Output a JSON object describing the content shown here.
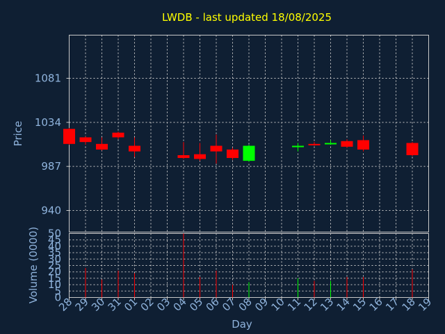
{
  "title": "LWDB - last updated 18/08/2025",
  "colors": {
    "background": "#0f1f33",
    "frame": "#c8c8c8",
    "grid": "#c8c8c8",
    "title": "#ffff00",
    "axis_text": "#8fb3dc",
    "up": "#00ff00",
    "down": "#ff0000"
  },
  "chart_data": [
    {
      "type": "candlestick",
      "ylabel": "Price",
      "ylim": [
        917,
        1127
      ],
      "yticks": [
        940,
        987,
        1034,
        1081
      ],
      "grid": true,
      "days": [
        "28",
        "29",
        "30",
        "31",
        "01",
        "02",
        "03",
        "04",
        "05",
        "06",
        "07",
        "08",
        "09",
        "10",
        "11",
        "12",
        "13",
        "14",
        "15",
        "16",
        "17",
        "18",
        "19"
      ],
      "candles": [
        {
          "day": "28",
          "open": 1027,
          "close": 1011,
          "high": 1028,
          "low": 1010
        },
        {
          "day": "29",
          "open": 1018,
          "close": 1013,
          "high": 1019,
          "low": 1010
        },
        {
          "day": "30",
          "open": 1011,
          "close": 1005,
          "high": 1018,
          "low": 1004
        },
        {
          "day": "31",
          "open": 1023,
          "close": 1018,
          "high": 1024,
          "low": 1016
        },
        {
          "day": "01",
          "open": 1009,
          "close": 1003,
          "high": 1018,
          "low": 997
        },
        {
          "day": "04",
          "open": 999,
          "close": 996,
          "high": 1013,
          "low": 995
        },
        {
          "day": "05",
          "open": 1000,
          "close": 995,
          "high": 1012,
          "low": 993
        },
        {
          "day": "06",
          "open": 1009,
          "close": 1003,
          "high": 1021,
          "low": 990
        },
        {
          "day": "07",
          "open": 1005,
          "close": 996,
          "high": 1007,
          "low": 994
        },
        {
          "day": "08",
          "open": 993,
          "close": 1009,
          "high": 1010,
          "low": 992
        },
        {
          "day": "11",
          "open": 1008,
          "close": 1009,
          "high": 1012,
          "low": 1003
        },
        {
          "day": "12",
          "open": 1011,
          "close": 1010,
          "high": 1013,
          "low": 1009
        },
        {
          "day": "13",
          "open": 1011,
          "close": 1012,
          "high": 1015,
          "low": 1010
        },
        {
          "day": "14",
          "open": 1014,
          "close": 1008,
          "high": 1016,
          "low": 1007
        },
        {
          "day": "15",
          "open": 1015,
          "close": 1005,
          "high": 1020,
          "low": 1003
        },
        {
          "day": "18",
          "open": 1012,
          "close": 999,
          "high": 1013,
          "low": 998
        }
      ]
    },
    {
      "type": "bar",
      "ylabel": "Volume (0000)",
      "xlabel": "Day",
      "ylim": [
        0,
        50
      ],
      "yticks": [
        0,
        5,
        10,
        15,
        20,
        25,
        30,
        35,
        40,
        45,
        50
      ],
      "grid": true,
      "bars": [
        {
          "day": "29",
          "value": 23,
          "color": "down"
        },
        {
          "day": "30",
          "value": 14,
          "color": "down"
        },
        {
          "day": "31",
          "value": 21,
          "color": "down"
        },
        {
          "day": "01",
          "value": 19,
          "color": "down"
        },
        {
          "day": "04",
          "value": 50,
          "color": "down"
        },
        {
          "day": "05",
          "value": 16,
          "color": "down"
        },
        {
          "day": "06",
          "value": 21,
          "color": "down"
        },
        {
          "day": "07",
          "value": 10,
          "color": "down"
        },
        {
          "day": "08",
          "value": 12,
          "color": "up"
        },
        {
          "day": "11",
          "value": 15,
          "color": "up"
        },
        {
          "day": "12",
          "value": 13,
          "color": "down"
        },
        {
          "day": "13",
          "value": 13,
          "color": "up"
        },
        {
          "day": "14",
          "value": 16,
          "color": "down"
        },
        {
          "day": "15",
          "value": 16,
          "color": "down"
        },
        {
          "day": "18",
          "value": 22,
          "color": "down"
        }
      ]
    }
  ]
}
